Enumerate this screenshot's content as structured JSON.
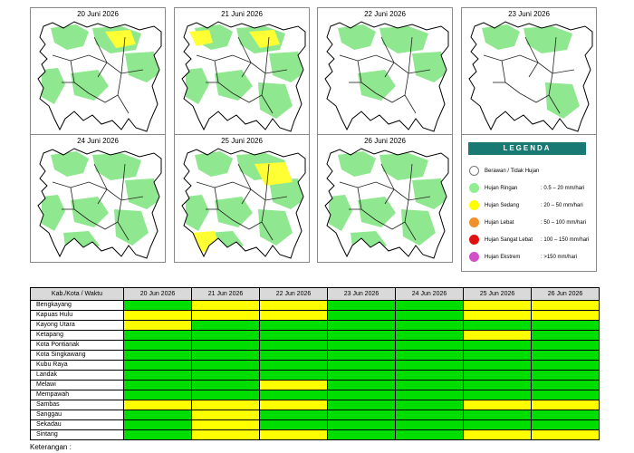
{
  "maps": [
    {
      "date": "20 Juni 2026",
      "patches": [
        "r1",
        "r2",
        "r3",
        "r4",
        "r5",
        "y1"
      ]
    },
    {
      "date": "21 Juni 2026",
      "patches": [
        "r1",
        "r2",
        "r3",
        "r4",
        "r5",
        "r6",
        "y1",
        "y2"
      ]
    },
    {
      "date": "22 Juni 2026",
      "patches": [
        "r1",
        "r2",
        "r3",
        "r5"
      ]
    },
    {
      "date": "23 Juni 2026",
      "patches": [
        "r1",
        "r2",
        "r6"
      ]
    },
    {
      "date": "24 Juni 2026",
      "patches": [
        "r1",
        "r2",
        "r3",
        "r4",
        "r5",
        "r6",
        "r7"
      ]
    },
    {
      "date": "25 Juni 2026",
      "patches": [
        "r1",
        "r2",
        "r3",
        "r4",
        "r5",
        "r6",
        "r7",
        "y3",
        "y4"
      ]
    },
    {
      "date": "26 Juni 2026",
      "patches": [
        "r1",
        "r2",
        "r3",
        "r4",
        "r5",
        "r6",
        "r7"
      ]
    }
  ],
  "legend": {
    "title": "LEGENDA",
    "items": [
      {
        "name": "Berawan / Tidak Hujan",
        "range": "",
        "color": "#ffffff"
      },
      {
        "name": "Hujan Ringan",
        "range": ": 0.5 – 20 mm/hari",
        "color": "#90ee90"
      },
      {
        "name": "Hujan Sedang",
        "range": ": 20 – 50 mm/hari",
        "color": "#ffff00"
      },
      {
        "name": "Hujan Lebat",
        "range": ": 50 – 100 mm/hari",
        "color": "#f0902a"
      },
      {
        "name": "Hujan Sangat Lebat",
        "range": ": 100 – 150 mm/hari",
        "color": "#e01010"
      },
      {
        "name": "Hujan Ekstrem",
        "range": ": >150 mm/hari",
        "color": "#d050c8"
      }
    ]
  },
  "table": {
    "header": "Kab./Kota / Waktu",
    "dates": [
      "20 Jun 2026",
      "21 Jun 2026",
      "22 Jun 2026",
      "23 Jun 2026",
      "24 Jun 2026",
      "25 Jun 2026",
      "26 Jun 2026"
    ],
    "rows": [
      {
        "name": "Bengkayang",
        "levels": [
          "g",
          "y",
          "y",
          "g",
          "g",
          "y",
          "y"
        ]
      },
      {
        "name": "Kapuas Hulu",
        "levels": [
          "y",
          "y",
          "y",
          "g",
          "g",
          "y",
          "y"
        ]
      },
      {
        "name": "Kayong Utara",
        "levels": [
          "y",
          "g",
          "g",
          "g",
          "g",
          "g",
          "g"
        ]
      },
      {
        "name": "Ketapang",
        "levels": [
          "g",
          "g",
          "g",
          "g",
          "g",
          "y",
          "g"
        ]
      },
      {
        "name": "Kota Pontianak",
        "levels": [
          "g",
          "g",
          "g",
          "g",
          "g",
          "g",
          "g"
        ]
      },
      {
        "name": "Kota Singkawang",
        "levels": [
          "g",
          "g",
          "g",
          "g",
          "g",
          "g",
          "g"
        ]
      },
      {
        "name": "Kubu Raya",
        "levels": [
          "g",
          "g",
          "g",
          "g",
          "g",
          "g",
          "g"
        ]
      },
      {
        "name": "Landak",
        "levels": [
          "g",
          "g",
          "g",
          "g",
          "g",
          "g",
          "g"
        ]
      },
      {
        "name": "Melawi",
        "levels": [
          "g",
          "g",
          "y",
          "g",
          "g",
          "g",
          "g"
        ]
      },
      {
        "name": "Mempawah",
        "levels": [
          "g",
          "g",
          "g",
          "g",
          "g",
          "g",
          "g"
        ]
      },
      {
        "name": "Sambas",
        "levels": [
          "y",
          "y",
          "y",
          "g",
          "g",
          "y",
          "y"
        ]
      },
      {
        "name": "Sanggau",
        "levels": [
          "g",
          "y",
          "g",
          "g",
          "g",
          "g",
          "g"
        ]
      },
      {
        "name": "Sekadau",
        "levels": [
          "g",
          "y",
          "g",
          "g",
          "g",
          "g",
          "g"
        ]
      },
      {
        "name": "Sintang",
        "levels": [
          "g",
          "y",
          "y",
          "g",
          "g",
          "y",
          "y"
        ]
      }
    ],
    "level_colors": {
      "g": "#00dd00",
      "y": "#ffff00"
    }
  },
  "note": "Keterangan :"
}
